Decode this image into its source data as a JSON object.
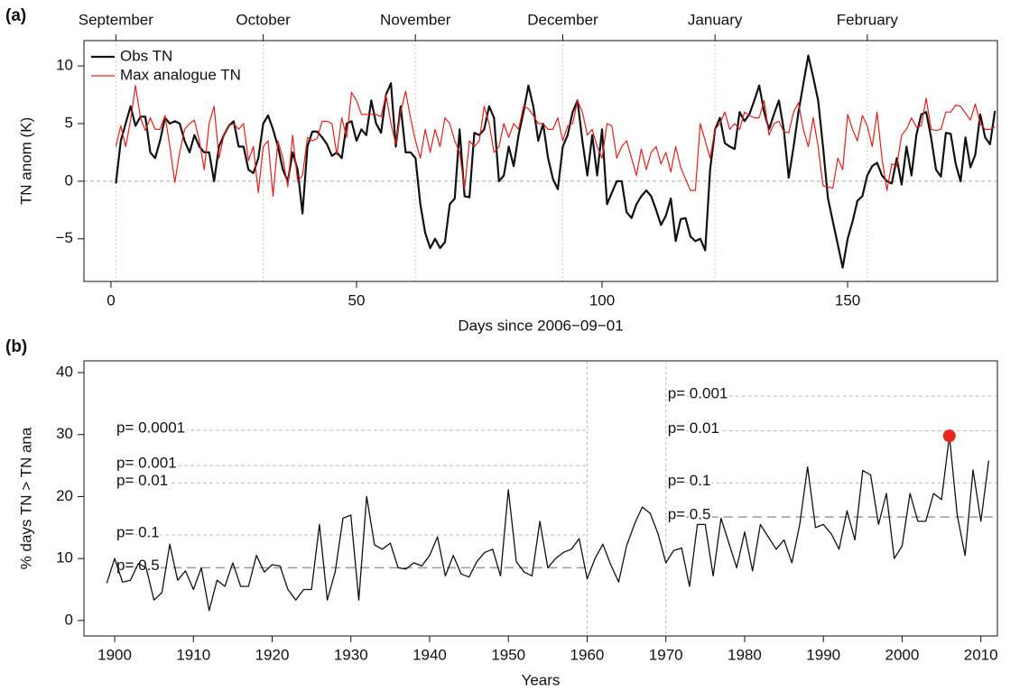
{
  "chart_data": [
    {
      "type": "line",
      "panel_label": "(a)",
      "x_label": "Days since 2006−09−01",
      "y_label": "TN anom (K)",
      "xlim": [
        -5.5,
        180.5
      ],
      "ylim": [
        -8.7,
        12.2
      ],
      "xticks": [
        0,
        50,
        100,
        150
      ],
      "yticks": [
        {
          "value": -5,
          "label": "−5"
        },
        0,
        5,
        10
      ],
      "top_ticks": [
        {
          "value": 1,
          "label": "September"
        },
        {
          "value": 31,
          "label": "October"
        },
        {
          "value": 62,
          "label": "November"
        },
        {
          "value": 92,
          "label": "December"
        },
        {
          "value": 123,
          "label": "January"
        },
        {
          "value": 154,
          "label": "February"
        }
      ],
      "reference_line": 0,
      "legend": "top-left",
      "x": [
        1,
        2,
        3,
        4,
        5,
        6,
        7,
        8,
        9,
        10,
        11,
        12,
        13,
        14,
        15,
        16,
        17,
        18,
        19,
        20,
        21,
        22,
        23,
        24,
        25,
        26,
        27,
        28,
        29,
        30,
        31,
        32,
        33,
        34,
        35,
        36,
        37,
        38,
        39,
        40,
        41,
        42,
        43,
        44,
        45,
        46,
        47,
        48,
        49,
        50,
        51,
        52,
        53,
        54,
        55,
        56,
        57,
        58,
        59,
        60,
        61,
        62,
        63,
        64,
        65,
        66,
        67,
        68,
        69,
        70,
        71,
        72,
        73,
        74,
        75,
        76,
        77,
        78,
        79,
        80,
        81,
        82,
        83,
        84,
        85,
        86,
        87,
        88,
        89,
        90,
        91,
        92,
        93,
        94,
        95,
        96,
        97,
        98,
        99,
        100,
        101,
        102,
        103,
        104,
        105,
        106,
        107,
        108,
        109,
        110,
        111,
        112,
        113,
        114,
        115,
        116,
        117,
        118,
        119,
        120,
        121,
        122,
        123,
        124,
        125,
        126,
        127,
        128,
        129,
        130,
        131,
        132,
        133,
        134,
        135,
        136,
        137,
        138,
        139,
        140,
        141,
        142,
        143,
        144,
        145,
        146,
        147,
        148,
        149,
        150,
        151,
        152,
        153,
        154,
        155,
        156,
        157,
        158,
        159,
        160,
        161,
        162,
        163,
        164,
        165,
        166,
        167,
        168,
        169,
        170,
        171,
        172,
        173,
        174,
        175,
        176,
        177,
        178,
        179,
        180
      ],
      "series": [
        {
          "name": "Obs TN",
          "color": "#111111",
          "width": 2.2,
          "values": [
            -0.2,
            3.5,
            5,
            6.5,
            4.8,
            5.6,
            5.6,
            2.5,
            2,
            3.5,
            5.5,
            5,
            5.2,
            5,
            3.5,
            2.5,
            4,
            3,
            2.5,
            2.5,
            0,
            3,
            4,
            4.8,
            5.2,
            3,
            3,
            1,
            0.7,
            2,
            5,
            5.7,
            4.5,
            3,
            1,
            0,
            2.5,
            1,
            -2.8,
            3,
            4.3,
            4.3,
            3.8,
            3.2,
            2.2,
            2.5,
            2,
            5,
            5.2,
            3.5,
            4.5,
            4,
            7,
            5,
            4.2,
            7.5,
            8.5,
            3,
            6.5,
            2.5,
            2.5,
            2,
            -2,
            -4.5,
            -5.8,
            -5,
            -5.8,
            -5.3,
            -2,
            -1.5,
            4.5,
            -1.3,
            -1.4,
            4.2,
            4,
            4.5,
            6.5,
            5.5,
            0,
            0.5,
            3,
            1.3,
            4,
            6,
            8.3,
            6.5,
            3.5,
            5,
            2,
            0.2,
            -0.7,
            3,
            4,
            6,
            7,
            3.5,
            0.5,
            4,
            0.5,
            4.5,
            -2,
            -1,
            0,
            0,
            -2.7,
            -3.2,
            -2,
            -1.3,
            -0.8,
            -1.3,
            -2.5,
            -3.8,
            -3,
            -1.5,
            -5.2,
            -3.3,
            -3.2,
            -4.8,
            -5.2,
            -5,
            -6,
            1,
            4.5,
            5.5,
            3.3,
            3,
            2.8,
            6,
            5.2,
            5.8,
            7,
            8.3,
            6,
            4.5,
            5.8,
            7,
            4.5,
            0.3,
            3,
            6,
            8.5,
            10.9,
            9,
            7,
            3,
            -1.5,
            -3.5,
            -5.5,
            -7.5,
            -5,
            -3.5,
            -1.7,
            -1.3,
            0.5,
            1.3,
            1.6,
            0.5,
            0,
            -0.2,
            2,
            -0.3,
            3,
            0.5,
            4,
            5.8,
            6,
            3.8,
            1,
            0.4,
            4.2,
            4.1,
            1.5,
            0,
            3.8,
            1.2,
            2.3,
            5.8,
            3.8,
            3.2,
            6.1
          ]
        },
        {
          "name": "Max analogue TN",
          "color": "#e0201c",
          "width": 1.2,
          "values": [
            3,
            4.8,
            3,
            5.3,
            8.3,
            5.5,
            4.4,
            5.5,
            4.5,
            4.5,
            5.7,
            3,
            -0.1,
            2.5,
            4.5,
            5,
            5.3,
            3.5,
            1,
            5,
            6.5,
            2,
            4,
            4.8,
            5,
            4.5,
            5,
            1.8,
            3,
            -1,
            3,
            3.5,
            -1.3,
            3.5,
            2,
            -0.5,
            4,
            0,
            0.5,
            3.8,
            3.5,
            3.7,
            5.2,
            5.2,
            5,
            2.3,
            5.5,
            3.8,
            7.7,
            7,
            5.8,
            5.8,
            5.8,
            5.8,
            5.6,
            7.5,
            5,
            3.2,
            6,
            7.8,
            5.5,
            3.5,
            2,
            4.5,
            2.5,
            4.5,
            3,
            5.5,
            5,
            3.5,
            2.5,
            -0.7,
            3.5,
            3,
            3.5,
            6.5,
            5,
            2.5,
            3,
            5,
            3.8,
            5,
            4.5,
            6.5,
            6.3,
            5.7,
            5,
            5,
            4.5,
            4.5,
            5.5,
            3.5,
            4.8,
            5,
            7,
            6,
            4,
            4.5,
            3,
            2,
            5,
            4.8,
            2,
            3,
            3.5,
            2,
            0.5,
            2.8,
            1,
            2.5,
            3,
            1.5,
            2.5,
            0.8,
            3,
            1.2,
            0.2,
            -0.8,
            -0.8,
            5,
            3.5,
            2,
            4.5,
            5,
            6,
            4.5,
            5,
            4.5,
            6,
            5.7,
            5.5,
            5.5,
            7,
            4,
            5,
            5.2,
            4.3,
            4.2,
            6,
            6.8,
            4.5,
            3,
            5.5,
            3,
            -0.4,
            -0.5,
            -0.6,
            2,
            1,
            5.8,
            4.5,
            3.5,
            5.7,
            4.8,
            3,
            6,
            2,
            -0.8,
            1.5,
            1.3,
            4,
            4.5,
            5.5,
            4.7,
            4.8,
            7.2,
            4.5,
            4.4,
            4.5,
            6,
            6,
            6.6,
            6.5,
            5.9,
            5.3,
            6.7,
            5,
            4.5,
            4.5,
            4.7
          ]
        }
      ]
    },
    {
      "type": "line",
      "panel_label": "(b)",
      "x_label": "Years",
      "y_label": "% days TN > TN ana",
      "xlim": [
        1896.1,
        2012.1
      ],
      "ylim": [
        -2.5,
        41.9
      ],
      "xticks": [
        1900,
        1910,
        1920,
        1930,
        1940,
        1950,
        1960,
        1970,
        1980,
        1990,
        2000,
        2010
      ],
      "yticks": [
        0,
        10,
        20,
        30,
        40
      ],
      "vlines": [
        1960,
        1970
      ],
      "x": [
        1899,
        1900,
        1901,
        1902,
        1903,
        1904,
        1905,
        1906,
        1907,
        1908,
        1909,
        1910,
        1911,
        1912,
        1913,
        1914,
        1915,
        1916,
        1917,
        1918,
        1919,
        1920,
        1921,
        1922,
        1923,
        1924,
        1925,
        1926,
        1927,
        1928,
        1929,
        1930,
        1931,
        1932,
        1933,
        1934,
        1935,
        1936,
        1937,
        1938,
        1939,
        1940,
        1941,
        1942,
        1943,
        1944,
        1945,
        1946,
        1947,
        1948,
        1949,
        1950,
        1951,
        1952,
        1953,
        1954,
        1955,
        1956,
        1957,
        1958,
        1959,
        1960,
        1961,
        1962,
        1963,
        1964,
        1965,
        1966,
        1967,
        1968,
        1969,
        1970,
        1971,
        1972,
        1973,
        1974,
        1975,
        1976,
        1977,
        1978,
        1979,
        1980,
        1981,
        1982,
        1983,
        1984,
        1985,
        1986,
        1987,
        1988,
        1989,
        1990,
        1991,
        1992,
        1993,
        1994,
        1995,
        1996,
        1997,
        1998,
        1999,
        2000,
        2001,
        2002,
        2003,
        2004,
        2005,
        2006,
        2007,
        2008,
        2009,
        2010,
        2011
      ],
      "series": [
        {
          "color": "#111111",
          "width": 1.3,
          "values": [
            6,
            10,
            6.2,
            6.5,
            9.2,
            8.5,
            3.3,
            4.5,
            12.3,
            6.5,
            8,
            5,
            8.5,
            1.6,
            6.5,
            5.5,
            9.3,
            5.5,
            5.5,
            10.5,
            7.8,
            9,
            8.8,
            5,
            3.3,
            5,
            5,
            15.5,
            3.3,
            7.8,
            16.5,
            17,
            3.3,
            20,
            12.2,
            11.5,
            12.5,
            8.5,
            8.3,
            9.3,
            8.8,
            10.5,
            13.5,
            7.2,
            10.5,
            7.5,
            7,
            9.5,
            11,
            11.5,
            7.2,
            21.1,
            9.5,
            7.8,
            7.2,
            16,
            8.5,
            10,
            11,
            11.5,
            13.2,
            6.7,
            10,
            12.3,
            9,
            6.2,
            12,
            15.5,
            18.3,
            17.3,
            14,
            9.3,
            11.3,
            11.7,
            5.5,
            15.5,
            15.5,
            7.2,
            16.5,
            12.5,
            8.5,
            14.3,
            8,
            15.5,
            13.5,
            11.5,
            13,
            9.3,
            15.5,
            24.8,
            15,
            15.5,
            14,
            11.5,
            17.7,
            13,
            24.2,
            23.5,
            15.5,
            20.5,
            10,
            12,
            20.5,
            16,
            16,
            20.5,
            19.5,
            29.8,
            17,
            10.5,
            24.3,
            16,
            25.8
          ]
        }
      ],
      "highlight": {
        "x": 2006,
        "y": 29.8,
        "color": "#e8261f"
      },
      "thresholds": [
        {
          "from": 1900,
          "to": 1960,
          "levels": [
            {
              "label": "p= 0.0001",
              "value": 30.7
            },
            {
              "label": "p= 0.001",
              "value": 25
            },
            {
              "label": "p= 0.01",
              "value": 22.2
            },
            {
              "label": "p= 0.1",
              "value": 13.8
            },
            {
              "label": "p= 0.5",
              "value": 8.5
            }
          ]
        },
        {
          "from": 1970,
          "to": 2012,
          "levels": [
            {
              "label": "p= 0.001",
              "value": 36.2
            },
            {
              "label": "p= 0.01",
              "value": 30.6
            },
            {
              "label": "p= 0.1",
              "value": 22.2
            },
            {
              "label": "p= 0.5",
              "value": 16.7
            }
          ]
        }
      ]
    }
  ]
}
